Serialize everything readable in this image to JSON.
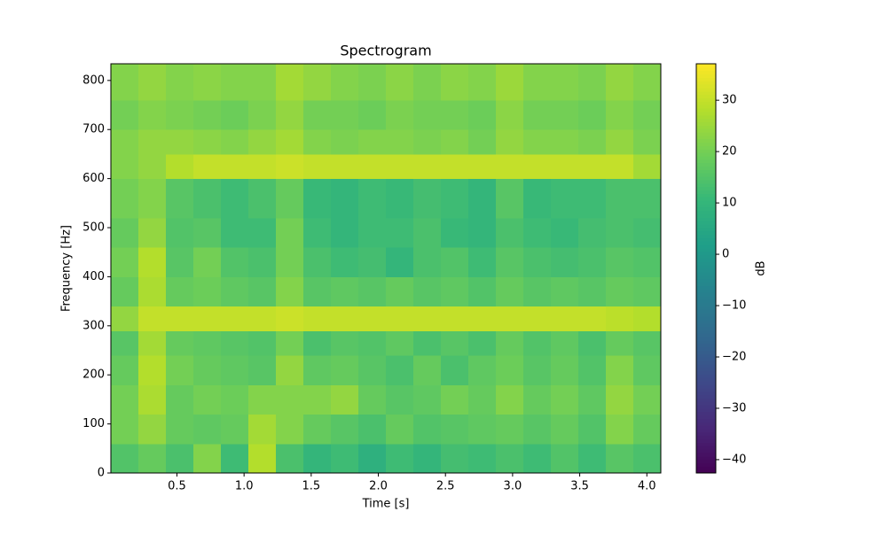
{
  "chart_data": {
    "type": "heatmap",
    "title": "Spectrogram",
    "x_label": "Time [s]",
    "y_label": "Frequency [Hz]",
    "colorbar_label": "dB",
    "colormap": "viridis",
    "xlim": [
      0.008,
      4.104
    ],
    "ylim": [
      0,
      834
    ],
    "clim": [
      -42.6,
      37.1
    ],
    "xticks": [
      0.5,
      {
        "value": 1,
        "label": "1.0"
      },
      1.5,
      {
        "value": 2,
        "label": "2.0"
      },
      2.5,
      {
        "value": 3,
        "label": "3.0"
      },
      3.5,
      {
        "value": 4,
        "label": "4.0"
      }
    ],
    "yticks": [
      0,
      100,
      200,
      300,
      400,
      500,
      600,
      700,
      800
    ],
    "cticks": [
      {
        "value": -40,
        "label": "−40"
      },
      {
        "value": -30,
        "label": "−30"
      },
      {
        "value": -20,
        "label": "−20"
      },
      {
        "value": -10,
        "label": "−10"
      },
      0,
      10,
      20,
      30
    ],
    "x_edges": [
      0.008,
      0.213,
      0.418,
      0.622,
      0.827,
      1.032,
      1.237,
      1.442,
      1.646,
      1.851,
      2.056,
      2.261,
      2.466,
      2.67,
      2.875,
      3.08,
      3.285,
      3.49,
      3.694,
      3.899,
      4.104
    ],
    "y_edges": [
      0,
      60,
      120,
      180,
      240,
      290,
      340,
      400,
      460,
      520,
      600,
      650,
      700,
      760,
      834
    ],
    "z": [
      [
        15,
        18,
        14,
        22,
        12,
        28,
        14,
        10,
        12,
        8,
        12,
        10,
        13,
        12,
        14,
        12,
        15,
        12,
        16,
        14
      ],
      [
        20,
        24,
        18,
        17,
        18,
        26,
        22,
        18,
        16,
        14,
        18,
        15,
        16,
        17,
        18,
        16,
        18,
        15,
        22,
        18
      ],
      [
        20,
        27,
        18,
        20,
        19,
        22,
        22,
        22,
        24,
        18,
        16,
        17,
        20,
        18,
        22,
        18,
        20,
        17,
        24,
        20
      ],
      [
        18,
        28,
        20,
        18,
        17,
        16,
        24,
        17,
        18,
        16,
        14,
        18,
        14,
        17,
        19,
        16,
        18,
        15,
        22,
        17
      ],
      [
        16,
        26,
        18,
        17,
        16,
        15,
        20,
        14,
        16,
        15,
        17,
        14,
        16,
        14,
        18,
        15,
        17,
        14,
        18,
        16
      ],
      [
        24,
        30,
        30,
        30,
        30,
        30,
        31,
        30,
        30,
        30,
        30,
        30,
        30,
        30,
        30,
        30,
        30,
        30,
        29,
        28
      ],
      [
        18,
        27,
        18,
        19,
        17,
        16,
        22,
        16,
        17,
        16,
        18,
        16,
        17,
        15,
        18,
        16,
        17,
        16,
        18,
        17
      ],
      [
        20,
        28,
        16,
        20,
        15,
        14,
        20,
        14,
        12,
        13,
        10,
        14,
        15,
        12,
        16,
        14,
        13,
        14,
        16,
        15
      ],
      [
        18,
        24,
        15,
        16,
        12,
        12,
        20,
        12,
        10,
        12,
        12,
        14,
        11,
        10,
        14,
        12,
        11,
        13,
        14,
        13
      ],
      [
        20,
        22,
        16,
        14,
        12,
        14,
        18,
        11,
        10,
        12,
        11,
        13,
        12,
        10,
        16,
        11,
        12,
        12,
        14,
        14
      ],
      [
        22,
        24,
        28,
        30,
        30,
        30,
        31,
        30,
        30,
        30,
        30,
        30,
        30,
        30,
        30,
        30,
        30,
        30,
        30,
        26
      ],
      [
        22,
        24,
        24,
        23,
        22,
        24,
        26,
        22,
        21,
        22,
        22,
        21,
        22,
        20,
        24,
        22,
        22,
        21,
        24,
        21
      ],
      [
        20,
        22,
        21,
        20,
        19,
        21,
        24,
        20,
        20,
        19,
        21,
        20,
        20,
        19,
        23,
        20,
        20,
        19,
        22,
        20
      ],
      [
        22,
        24,
        22,
        23,
        22,
        22,
        26,
        24,
        22,
        21,
        23,
        21,
        23,
        22,
        25,
        22,
        22,
        21,
        24,
        22
      ]
    ]
  }
}
